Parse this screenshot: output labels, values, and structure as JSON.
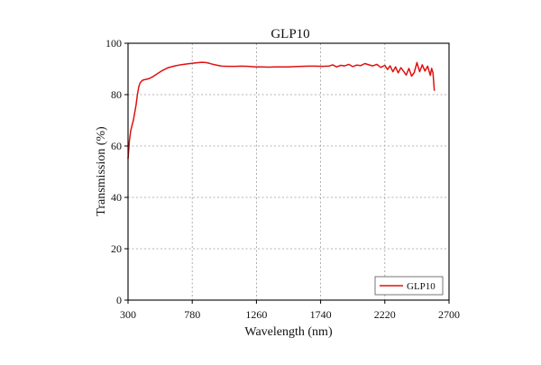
{
  "chart_data": {
    "type": "line",
    "title": "GLP10",
    "xlabel": "Wavelength (nm)",
    "ylabel": "Transmission (%)",
    "xlim": [
      300,
      2700
    ],
    "ylim": [
      0,
      100
    ],
    "xticks": [
      300,
      780,
      1260,
      1740,
      2220,
      2700
    ],
    "yticks": [
      0,
      20,
      40,
      60,
      80,
      100
    ],
    "grid": true,
    "legend": {
      "position": "bottom-right",
      "entries": [
        "GLP10"
      ]
    },
    "series": [
      {
        "name": "GLP10",
        "color": "#e01010",
        "x": [
          300,
          310,
          320,
          330,
          340,
          350,
          360,
          370,
          380,
          390,
          400,
          410,
          420,
          440,
          460,
          480,
          500,
          530,
          560,
          600,
          650,
          700,
          750,
          800,
          850,
          880,
          900,
          920,
          950,
          1000,
          1050,
          1100,
          1150,
          1200,
          1250,
          1300,
          1350,
          1400,
          1450,
          1500,
          1550,
          1600,
          1650,
          1700,
          1750,
          1800,
          1830,
          1860,
          1890,
          1920,
          1950,
          1980,
          2010,
          2040,
          2070,
          2100,
          2130,
          2160,
          2190,
          2220,
          2240,
          2260,
          2280,
          2300,
          2320,
          2340,
          2360,
          2380,
          2400,
          2420,
          2440,
          2460,
          2480,
          2500,
          2520,
          2540,
          2560,
          2570,
          2580,
          2590
        ],
        "y": [
          55,
          62,
          66,
          68,
          70,
          73,
          76,
          80,
          83,
          84.5,
          85.2,
          85.6,
          85.8,
          86,
          86.3,
          86.8,
          87.5,
          88.5,
          89.5,
          90.5,
          91.2,
          91.7,
          92,
          92.3,
          92.6,
          92.5,
          92.3,
          92,
          91.6,
          91.1,
          91,
          91,
          91.1,
          91,
          90.8,
          90.8,
          90.7,
          90.8,
          90.8,
          90.8,
          90.9,
          91,
          91.1,
          91.1,
          91,
          91.1,
          91.6,
          90.8,
          91.4,
          91.2,
          91.8,
          90.9,
          91.5,
          91.3,
          92.1,
          91.6,
          91.2,
          91.8,
          90.6,
          91.4,
          89.8,
          91.2,
          88.9,
          90.8,
          88.5,
          90.5,
          89.1,
          87.6,
          90.2,
          87.2,
          88.6,
          92.5,
          88.9,
          91.6,
          89.2,
          91.1,
          87.5,
          90.2,
          88.5,
          81.5
        ]
      }
    ]
  }
}
